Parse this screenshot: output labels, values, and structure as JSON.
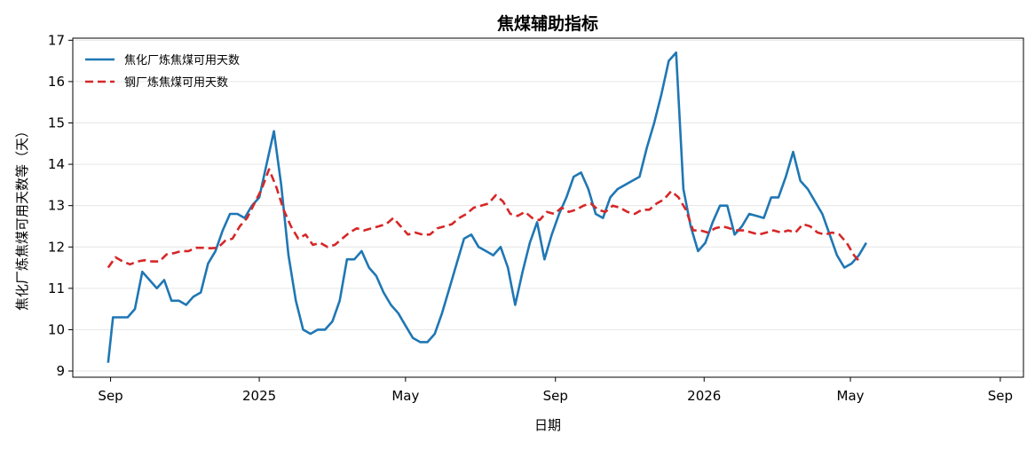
{
  "chart_data": {
    "type": "line",
    "title": "焦煤辅助指标",
    "xlabel": "日期",
    "ylabel": "焦化厂炼焦煤可用天数等（天）",
    "ylim": [
      8.85,
      17.05
    ],
    "y_ticks": [
      9,
      10,
      11,
      12,
      13,
      14,
      15,
      16,
      17
    ],
    "xlim": [
      "2024-08-01",
      "2026-09-20"
    ],
    "x_ticks": [
      {
        "date": "2024-09-01",
        "label": "Sep"
      },
      {
        "date": "2025-01-01",
        "label": "2025"
      },
      {
        "date": "2025-05-01",
        "label": "May"
      },
      {
        "date": "2025-09-01",
        "label": "Sep"
      },
      {
        "date": "2026-01-01",
        "label": "2026"
      },
      {
        "date": "2026-05-01",
        "label": "May"
      },
      {
        "date": "2026-09-01",
        "label": "Sep"
      }
    ],
    "grid": "y",
    "legend": "top-left",
    "series": [
      {
        "name": "焦化厂炼焦煤可用天数",
        "color": "#1f77b4",
        "style": "solid",
        "points": [
          [
            "2024-08-30",
            9.2
          ],
          [
            "2024-09-03",
            10.3
          ],
          [
            "2024-09-09",
            10.3
          ],
          [
            "2024-09-15",
            10.3
          ],
          [
            "2024-09-21",
            10.5
          ],
          [
            "2024-09-27",
            11.4
          ],
          [
            "2024-10-03",
            11.2
          ],
          [
            "2024-10-09",
            11.0
          ],
          [
            "2024-10-15",
            11.2
          ],
          [
            "2024-10-21",
            10.7
          ],
          [
            "2024-10-27",
            10.7
          ],
          [
            "2024-11-02",
            10.6
          ],
          [
            "2024-11-08",
            10.8
          ],
          [
            "2024-11-14",
            10.9
          ],
          [
            "2024-11-20",
            11.6
          ],
          [
            "2024-11-26",
            11.9
          ],
          [
            "2024-12-02",
            12.4
          ],
          [
            "2024-12-08",
            12.8
          ],
          [
            "2024-12-14",
            12.8
          ],
          [
            "2024-12-20",
            12.7
          ],
          [
            "2024-12-26",
            13.0
          ],
          [
            "2025-01-01",
            13.2
          ],
          [
            "2025-01-07",
            14.0
          ],
          [
            "2025-01-13",
            14.8
          ],
          [
            "2025-01-19",
            13.5
          ],
          [
            "2025-01-25",
            11.8
          ],
          [
            "2025-01-31",
            10.7
          ],
          [
            "2025-02-06",
            10.0
          ],
          [
            "2025-02-12",
            9.9
          ],
          [
            "2025-02-18",
            10.0
          ],
          [
            "2025-02-24",
            10.0
          ],
          [
            "2025-03-02",
            10.2
          ],
          [
            "2025-03-08",
            10.7
          ],
          [
            "2025-03-14",
            11.7
          ],
          [
            "2025-03-20",
            11.7
          ],
          [
            "2025-03-26",
            11.9
          ],
          [
            "2025-04-01",
            11.5
          ],
          [
            "2025-04-07",
            11.3
          ],
          [
            "2025-04-13",
            10.9
          ],
          [
            "2025-04-19",
            10.6
          ],
          [
            "2025-04-25",
            10.4
          ],
          [
            "2025-05-01",
            10.1
          ],
          [
            "2025-05-07",
            9.8
          ],
          [
            "2025-05-13",
            9.7
          ],
          [
            "2025-05-19",
            9.7
          ],
          [
            "2025-05-25",
            9.9
          ],
          [
            "2025-05-31",
            10.4
          ],
          [
            "2025-06-06",
            11.0
          ],
          [
            "2025-06-12",
            11.6
          ],
          [
            "2025-06-18",
            12.2
          ],
          [
            "2025-06-24",
            12.3
          ],
          [
            "2025-06-30",
            12.0
          ],
          [
            "2025-07-06",
            11.9
          ],
          [
            "2025-07-12",
            11.8
          ],
          [
            "2025-07-18",
            12.0
          ],
          [
            "2025-07-24",
            11.5
          ],
          [
            "2025-07-30",
            10.6
          ],
          [
            "2025-08-05",
            11.4
          ],
          [
            "2025-08-11",
            12.1
          ],
          [
            "2025-08-17",
            12.6
          ],
          [
            "2025-08-23",
            11.7
          ],
          [
            "2025-08-29",
            12.3
          ],
          [
            "2025-09-04",
            12.8
          ],
          [
            "2025-09-10",
            13.2
          ],
          [
            "2025-09-16",
            13.7
          ],
          [
            "2025-09-22",
            13.8
          ],
          [
            "2025-09-28",
            13.4
          ],
          [
            "2025-10-04",
            12.8
          ],
          [
            "2025-10-10",
            12.7
          ],
          [
            "2025-10-16",
            13.2
          ],
          [
            "2025-10-22",
            13.4
          ],
          [
            "2025-10-28",
            13.5
          ],
          [
            "2025-11-03",
            13.6
          ],
          [
            "2025-11-09",
            13.7
          ],
          [
            "2025-11-15",
            14.4
          ],
          [
            "2025-11-21",
            15.0
          ],
          [
            "2025-11-27",
            15.7
          ],
          [
            "2025-12-03",
            16.5
          ],
          [
            "2025-12-09",
            16.7
          ],
          [
            "2025-12-15",
            13.4
          ],
          [
            "2025-12-21",
            12.5
          ],
          [
            "2025-12-27",
            11.9
          ],
          [
            "2026-01-02",
            12.1
          ],
          [
            "2026-01-08",
            12.6
          ],
          [
            "2026-01-14",
            13.0
          ],
          [
            "2026-01-20",
            13.0
          ],
          [
            "2026-01-26",
            12.3
          ],
          [
            "2026-02-01",
            12.5
          ],
          [
            "2026-02-07",
            12.8
          ],
          [
            "2026-02-13",
            12.75
          ],
          [
            "2026-02-19",
            12.7
          ],
          [
            "2026-02-25",
            13.2
          ],
          [
            "2026-03-03",
            13.2
          ],
          [
            "2026-03-09",
            13.7
          ],
          [
            "2026-03-15",
            14.3
          ],
          [
            "2026-03-21",
            13.6
          ],
          [
            "2026-03-27",
            13.4
          ],
          [
            "2026-04-02",
            13.1
          ],
          [
            "2026-04-08",
            12.8
          ],
          [
            "2026-04-14",
            12.3
          ],
          [
            "2026-04-20",
            11.8
          ],
          [
            "2026-04-26",
            11.5
          ],
          [
            "2026-05-02",
            11.6
          ],
          [
            "2026-05-08",
            11.8
          ],
          [
            "2026-05-14",
            12.1
          ]
        ]
      },
      {
        "name": "钢厂炼焦煤可用天数",
        "color": "#d62728",
        "style": "dashed",
        "points": [
          [
            "2024-08-30",
            11.5
          ],
          [
            "2024-09-05",
            11.75
          ],
          [
            "2024-09-11",
            11.65
          ],
          [
            "2024-09-17",
            11.58
          ],
          [
            "2024-09-23",
            11.65
          ],
          [
            "2024-09-29",
            11.68
          ],
          [
            "2024-10-05",
            11.65
          ],
          [
            "2024-10-11",
            11.65
          ],
          [
            "2024-10-17",
            11.82
          ],
          [
            "2024-10-23",
            11.85
          ],
          [
            "2024-10-29",
            11.9
          ],
          [
            "2024-11-04",
            11.9
          ],
          [
            "2024-11-10",
            11.98
          ],
          [
            "2024-11-16",
            11.98
          ],
          [
            "2024-11-22",
            11.97
          ],
          [
            "2024-11-28",
            11.98
          ],
          [
            "2024-12-04",
            12.15
          ],
          [
            "2024-12-10",
            12.2
          ],
          [
            "2024-12-16",
            12.5
          ],
          [
            "2024-12-22",
            12.7
          ],
          [
            "2024-12-28",
            13.05
          ],
          [
            "2025-01-03",
            13.4
          ],
          [
            "2025-01-09",
            13.88
          ],
          [
            "2025-01-15",
            13.45
          ],
          [
            "2025-01-21",
            12.9
          ],
          [
            "2025-01-27",
            12.5
          ],
          [
            "2025-02-02",
            12.2
          ],
          [
            "2025-02-08",
            12.3
          ],
          [
            "2025-02-14",
            12.05
          ],
          [
            "2025-02-20",
            12.1
          ],
          [
            "2025-02-26",
            12.0
          ],
          [
            "2025-03-04",
            12.05
          ],
          [
            "2025-03-10",
            12.2
          ],
          [
            "2025-03-16",
            12.35
          ],
          [
            "2025-03-22",
            12.45
          ],
          [
            "2025-03-28",
            12.4
          ],
          [
            "2025-04-03",
            12.45
          ],
          [
            "2025-04-09",
            12.5
          ],
          [
            "2025-04-15",
            12.55
          ],
          [
            "2025-04-21",
            12.7
          ],
          [
            "2025-04-27",
            12.5
          ],
          [
            "2025-05-03",
            12.3
          ],
          [
            "2025-05-09",
            12.35
          ],
          [
            "2025-05-15",
            12.3
          ],
          [
            "2025-05-21",
            12.3
          ],
          [
            "2025-05-27",
            12.45
          ],
          [
            "2025-06-02",
            12.5
          ],
          [
            "2025-06-08",
            12.55
          ],
          [
            "2025-06-14",
            12.7
          ],
          [
            "2025-06-20",
            12.8
          ],
          [
            "2025-06-26",
            12.95
          ],
          [
            "2025-07-02",
            13.0
          ],
          [
            "2025-07-08",
            13.05
          ],
          [
            "2025-07-14",
            13.25
          ],
          [
            "2025-07-20",
            13.1
          ],
          [
            "2025-07-26",
            12.8
          ],
          [
            "2025-08-01",
            12.75
          ],
          [
            "2025-08-07",
            12.85
          ],
          [
            "2025-08-13",
            12.7
          ],
          [
            "2025-08-19",
            12.65
          ],
          [
            "2025-08-25",
            12.85
          ],
          [
            "2025-08-31",
            12.8
          ],
          [
            "2025-09-06",
            12.95
          ],
          [
            "2025-09-12",
            12.85
          ],
          [
            "2025-09-18",
            12.9
          ],
          [
            "2025-09-24",
            13.0
          ],
          [
            "2025-09-30",
            13.05
          ],
          [
            "2025-10-06",
            12.9
          ],
          [
            "2025-10-12",
            12.85
          ],
          [
            "2025-10-18",
            13.0
          ],
          [
            "2025-10-24",
            12.95
          ],
          [
            "2025-10-30",
            12.85
          ],
          [
            "2025-11-05",
            12.8
          ],
          [
            "2025-11-11",
            12.9
          ],
          [
            "2025-11-17",
            12.9
          ],
          [
            "2025-11-23",
            13.05
          ],
          [
            "2025-11-29",
            13.15
          ],
          [
            "2025-12-05",
            13.35
          ],
          [
            "2025-12-11",
            13.2
          ],
          [
            "2025-12-17",
            12.9
          ],
          [
            "2025-12-23",
            12.4
          ],
          [
            "2025-12-29",
            12.4
          ],
          [
            "2026-01-04",
            12.35
          ],
          [
            "2026-01-10",
            12.45
          ],
          [
            "2026-01-16",
            12.5
          ],
          [
            "2026-01-22",
            12.45
          ],
          [
            "2026-01-28",
            12.4
          ],
          [
            "2026-02-03",
            12.4
          ],
          [
            "2026-02-09",
            12.35
          ],
          [
            "2026-02-15",
            12.3
          ],
          [
            "2026-02-21",
            12.35
          ],
          [
            "2026-02-27",
            12.4
          ],
          [
            "2026-03-05",
            12.35
          ],
          [
            "2026-03-11",
            12.4
          ],
          [
            "2026-03-17",
            12.35
          ],
          [
            "2026-03-23",
            12.55
          ],
          [
            "2026-03-29",
            12.5
          ],
          [
            "2026-04-04",
            12.35
          ],
          [
            "2026-04-10",
            12.3
          ],
          [
            "2026-04-16",
            12.35
          ],
          [
            "2026-04-22",
            12.3
          ],
          [
            "2026-04-28",
            12.1
          ],
          [
            "2026-05-04",
            11.8
          ],
          [
            "2026-05-10",
            11.6
          ]
        ]
      }
    ]
  }
}
